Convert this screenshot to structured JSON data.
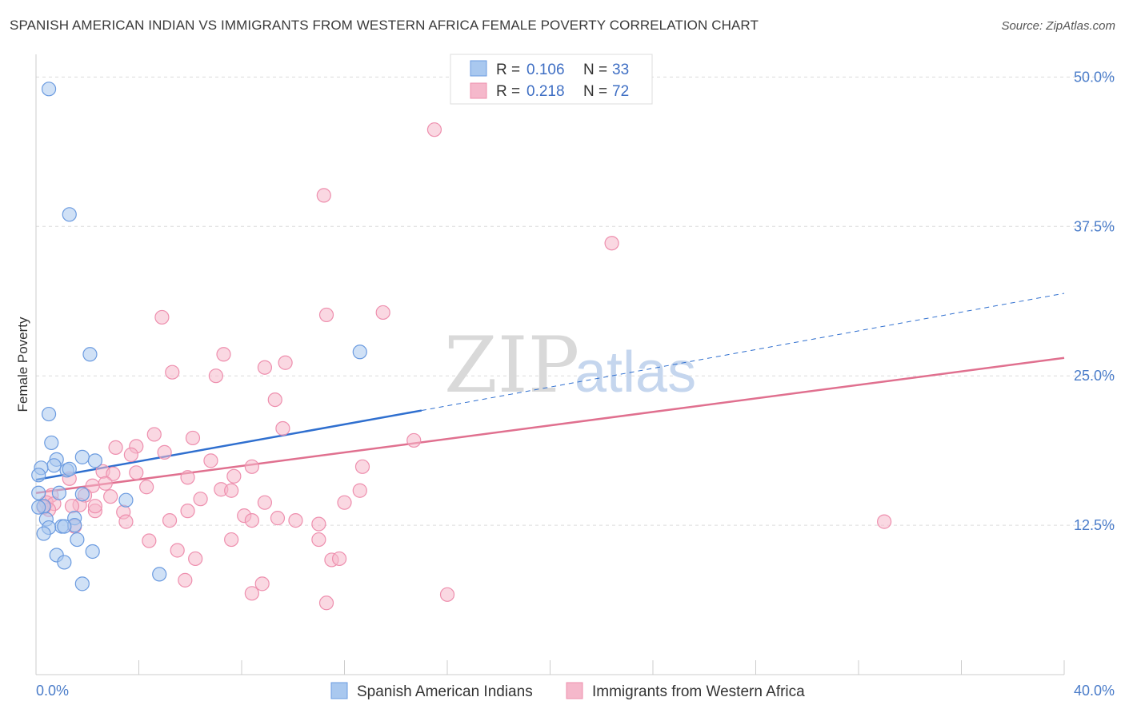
{
  "header": {
    "title": "SPANISH AMERICAN INDIAN VS IMMIGRANTS FROM WESTERN AFRICA FEMALE POVERTY CORRELATION CHART",
    "source": "Source: ZipAtlas.com"
  },
  "watermark": {
    "zip": "ZIP",
    "atlas": "atlas"
  },
  "legend": {
    "r_label": "R =",
    "n_label": "N =",
    "entries": [
      {
        "r": "0.106",
        "n": "33",
        "color": "#a9c8ef"
      },
      {
        "r": "0.218",
        "n": "72",
        "color": "#f5b8cb"
      }
    ]
  },
  "bottom_legend": {
    "items": [
      {
        "label": "Spanish American Indians",
        "color": "#a9c8ef"
      },
      {
        "label": "Immigrants from Western Africa",
        "color": "#f5b8cb"
      }
    ]
  },
  "chart_data": {
    "type": "scatter",
    "title": "SPANISH AMERICAN INDIAN VS IMMIGRANTS FROM WESTERN AFRICA FEMALE POVERTY CORRELATION CHART",
    "xlabel": "",
    "ylabel": "Female Poverty",
    "xlim": [
      0,
      40
    ],
    "ylim": [
      0,
      52.5
    ],
    "x_tick_labels": [
      "0.0%",
      "40.0%"
    ],
    "y_ticks": [
      12.5,
      25.0,
      37.5,
      50.0
    ],
    "y_tick_labels": [
      "12.5%",
      "25.0%",
      "37.5%",
      "50.0%"
    ],
    "grid": true,
    "series": [
      {
        "name": "Spanish American Indians",
        "color": "#6b9be0",
        "fill": "#a9c8ef",
        "r": 0.106,
        "n": 33,
        "trend": {
          "x0": 0,
          "y0": 16.3,
          "x1": 15,
          "y1": 22.1,
          "dashed_to_x": 40,
          "dashed_to_y": 31.9,
          "color": "#2f6fcf"
        },
        "points": [
          [
            0.5,
            49.0
          ],
          [
            1.3,
            38.5
          ],
          [
            2.1,
            26.8
          ],
          [
            12.6,
            27.0
          ],
          [
            0.5,
            21.8
          ],
          [
            0.6,
            19.4
          ],
          [
            0.8,
            18.0
          ],
          [
            1.8,
            18.2
          ],
          [
            2.3,
            17.9
          ],
          [
            0.7,
            17.5
          ],
          [
            1.2,
            17.1
          ],
          [
            0.2,
            17.3
          ],
          [
            0.1,
            16.7
          ],
          [
            0.9,
            15.2
          ],
          [
            1.8,
            15.1
          ],
          [
            0.1,
            15.2
          ],
          [
            3.5,
            14.6
          ],
          [
            0.3,
            14.1
          ],
          [
            0.1,
            14.0
          ],
          [
            1.5,
            13.1
          ],
          [
            0.4,
            13.0
          ],
          [
            1.0,
            12.4
          ],
          [
            0.5,
            12.3
          ],
          [
            1.5,
            12.5
          ],
          [
            1.1,
            12.4
          ],
          [
            0.3,
            11.8
          ],
          [
            1.6,
            11.3
          ],
          [
            2.2,
            10.3
          ],
          [
            0.8,
            10.0
          ],
          [
            1.1,
            9.4
          ],
          [
            4.8,
            8.4
          ],
          [
            1.8,
            7.6
          ],
          [
            1.3,
            17.2
          ]
        ]
      },
      {
        "name": "Immigrants from Western Africa",
        "color": "#ee8fae",
        "fill": "#f5b8cb",
        "r": 0.218,
        "n": 72,
        "trend": {
          "x0": 0,
          "y0": 15.2,
          "x1": 40,
          "y1": 26.5,
          "color": "#e0708f"
        },
        "points": [
          [
            15.5,
            45.6
          ],
          [
            11.2,
            40.1
          ],
          [
            22.4,
            36.1
          ],
          [
            13.5,
            30.3
          ],
          [
            11.3,
            30.1
          ],
          [
            4.9,
            29.9
          ],
          [
            7.3,
            26.8
          ],
          [
            9.7,
            26.1
          ],
          [
            8.9,
            25.7
          ],
          [
            5.3,
            25.3
          ],
          [
            7.0,
            25.0
          ],
          [
            9.3,
            23.0
          ],
          [
            9.6,
            20.6
          ],
          [
            4.6,
            20.1
          ],
          [
            6.1,
            19.8
          ],
          [
            14.7,
            19.6
          ],
          [
            3.1,
            19.0
          ],
          [
            3.9,
            19.1
          ],
          [
            5.0,
            18.6
          ],
          [
            3.7,
            18.4
          ],
          [
            6.8,
            17.9
          ],
          [
            2.6,
            17.0
          ],
          [
            12.7,
            17.4
          ],
          [
            8.4,
            17.4
          ],
          [
            3.0,
            16.8
          ],
          [
            3.9,
            16.9
          ],
          [
            7.7,
            16.6
          ],
          [
            5.9,
            16.5
          ],
          [
            1.3,
            16.4
          ],
          [
            2.7,
            16.0
          ],
          [
            2.2,
            15.8
          ],
          [
            4.3,
            15.7
          ],
          [
            7.2,
            15.5
          ],
          [
            7.6,
            15.4
          ],
          [
            12.6,
            15.4
          ],
          [
            1.9,
            15.0
          ],
          [
            2.9,
            14.9
          ],
          [
            0.6,
            15.0
          ],
          [
            0.4,
            14.4
          ],
          [
            6.4,
            14.7
          ],
          [
            12.0,
            14.4
          ],
          [
            8.9,
            14.4
          ],
          [
            0.7,
            14.3
          ],
          [
            1.7,
            14.2
          ],
          [
            1.4,
            14.1
          ],
          [
            0.5,
            13.8
          ],
          [
            2.3,
            13.7
          ],
          [
            3.4,
            13.6
          ],
          [
            5.9,
            13.7
          ],
          [
            8.1,
            13.3
          ],
          [
            9.4,
            13.1
          ],
          [
            8.4,
            12.9
          ],
          [
            5.2,
            12.9
          ],
          [
            3.5,
            12.8
          ],
          [
            10.1,
            12.9
          ],
          [
            11.0,
            12.6
          ],
          [
            33.0,
            12.8
          ],
          [
            1.5,
            12.4
          ],
          [
            7.6,
            11.3
          ],
          [
            11.0,
            11.3
          ],
          [
            4.4,
            11.2
          ],
          [
            5.5,
            10.4
          ],
          [
            6.2,
            9.7
          ],
          [
            11.5,
            9.6
          ],
          [
            11.8,
            9.7
          ],
          [
            5.8,
            7.9
          ],
          [
            8.8,
            7.6
          ],
          [
            8.4,
            6.8
          ],
          [
            16.0,
            6.7
          ],
          [
            11.3,
            6.0
          ],
          [
            0.3,
            14.0
          ],
          [
            2.3,
            14.1
          ]
        ]
      }
    ]
  }
}
